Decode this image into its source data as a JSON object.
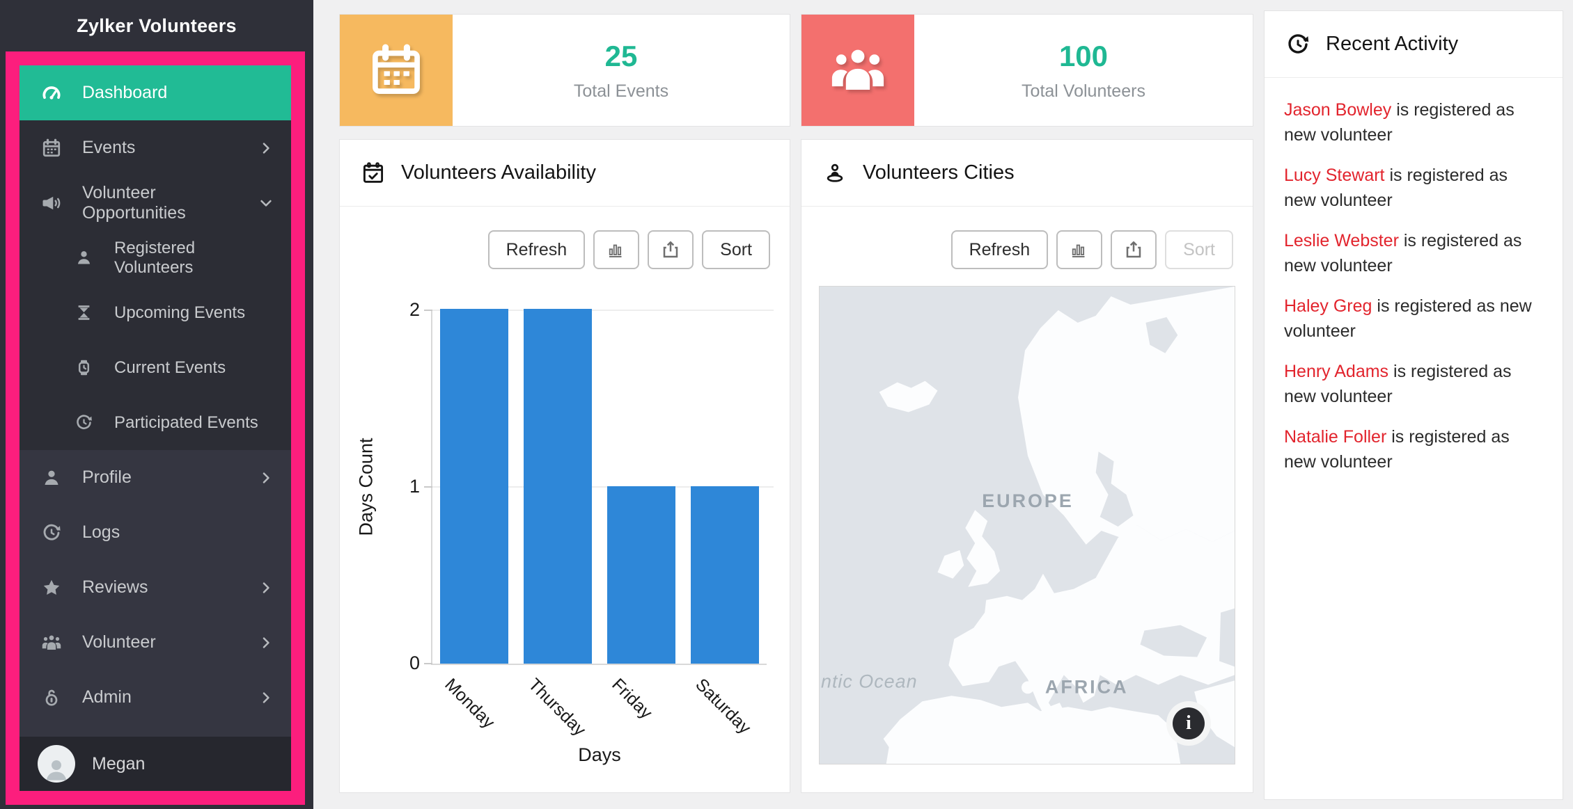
{
  "app": {
    "title": "Zylker Volunteers"
  },
  "sidebar": {
    "nav": [
      {
        "label": "Dashboard",
        "icon": "gauge-icon",
        "active": true
      },
      {
        "label": "Events",
        "icon": "calendar-icon",
        "chevron": "right"
      },
      {
        "label": "Volunteer Opportunities",
        "icon": "megaphone-icon",
        "chevron": "down",
        "expanded": true
      },
      {
        "label": "Registered Volunteers",
        "icon": "person-icon",
        "sub": true
      },
      {
        "label": "Upcoming Events",
        "icon": "hourglass-icon",
        "sub": true
      },
      {
        "label": "Current Events",
        "icon": "watch-icon",
        "sub": true
      },
      {
        "label": "Participated Events",
        "icon": "history-icon",
        "sub": true
      },
      {
        "label": "Profile",
        "icon": "person-icon",
        "chevron": "right"
      },
      {
        "label": "Logs",
        "icon": "history-icon"
      },
      {
        "label": "Reviews",
        "icon": "star-icon",
        "chevron": "right"
      },
      {
        "label": "Volunteer",
        "icon": "group-icon",
        "chevron": "right"
      },
      {
        "label": "Admin",
        "icon": "unlock-icon",
        "chevron": "right"
      }
    ],
    "user": {
      "name": "Megan",
      "icon": "avatar"
    }
  },
  "stats": [
    {
      "value": "25",
      "label": "Total Events",
      "icon": "calendar-icon",
      "icon_bg": "#F6B95F"
    },
    {
      "value": "100",
      "label": "Total Volunteers",
      "icon": "group-icon",
      "icon_bg": "#F3706E"
    }
  ],
  "panels": {
    "availability": {
      "title": "Volunteers Availability",
      "icon": "calendar-check-icon",
      "refresh_label": "Refresh",
      "sort_label": "Sort"
    },
    "cities": {
      "title": "Volunteers Cities",
      "icon": "person-pin-icon",
      "refresh_label": "Refresh",
      "sort_label": "Sort",
      "sort_disabled": true,
      "map": {
        "labels": {
          "europe": "EUROPE",
          "africa": "AFRICA",
          "ocean": "ntic Ocean"
        },
        "info_icon": "i"
      }
    },
    "activity": {
      "title": "Recent Activity",
      "icon": "history-icon",
      "entries": [
        {
          "name": "Jason Bowley",
          "text": " is registered as new volunteer"
        },
        {
          "name": "Lucy Stewart",
          "text": " is registered as new volunteer"
        },
        {
          "name": "Leslie Webster",
          "text": " is registered as new volunteer"
        },
        {
          "name": "Haley Greg",
          "text": " is registered as new volunteer"
        },
        {
          "name": "Henry Adams",
          "text": " is registered as new volunteer"
        },
        {
          "name": "Natalie Foller",
          "text": " is registered as new volunteer"
        }
      ]
    }
  },
  "chart_data": {
    "type": "bar",
    "title": "Volunteers Availability",
    "categories": [
      "Monday",
      "Thursday",
      "Friday",
      "Saturday"
    ],
    "values": [
      2,
      2,
      1,
      1
    ],
    "xlabel": "Days",
    "ylabel": "Days Count",
    "ylim": [
      0,
      2
    ],
    "yticks": [
      0,
      1,
      2
    ],
    "bar_color": "#2E87D8",
    "grid": true,
    "legend": "none"
  },
  "colors": {
    "accent_teal": "#21BB95",
    "highlight_pink": "#FC1E7D",
    "sidebar_bg": "#2F3039",
    "stat_orange": "#F6B95F",
    "stat_red": "#F3706E",
    "bar_blue": "#2E87D8",
    "activity_name_red": "#E2242D",
    "map_ocean": "#DFE3E8"
  }
}
